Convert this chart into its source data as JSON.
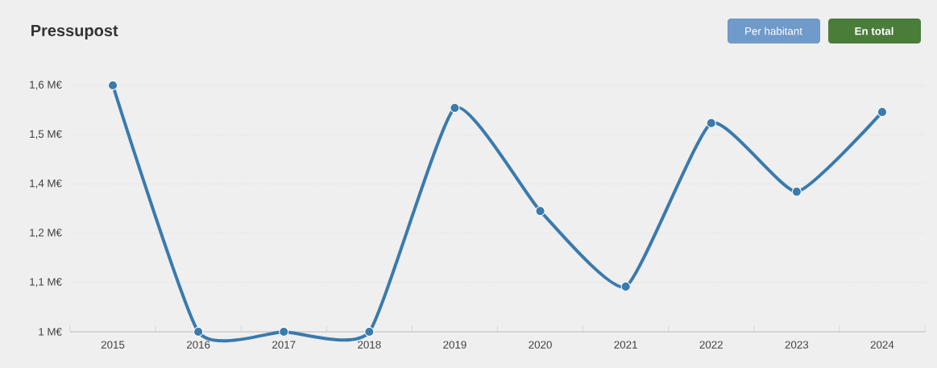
{
  "chart_data": {
    "type": "line",
    "title": "Pressupost",
    "categories": [
      "2015",
      "2016",
      "2017",
      "2018",
      "2019",
      "2020",
      "2021",
      "2022",
      "2023",
      "2024"
    ],
    "values": [
      1.6,
      1.0,
      1.0,
      1.0,
      1.545,
      1.294,
      1.11,
      1.508,
      1.341,
      1.535
    ],
    "color": "#3a7aad",
    "marker": "circle",
    "grid": "y",
    "ylim": [
      1.0,
      1.6
    ],
    "yticks": [
      {
        "value": 1.0,
        "label": "1 M€"
      },
      {
        "value": 1.12,
        "label": "1,1 M€"
      },
      {
        "value": 1.24,
        "label": "1,2 M€"
      },
      {
        "value": 1.36,
        "label": "1,4 M€"
      },
      {
        "value": 1.48,
        "label": "1,5 M€"
      },
      {
        "value": 1.6,
        "label": "1,6 M€"
      }
    ],
    "annotations": [
      "Per habitant",
      "En total"
    ]
  }
}
